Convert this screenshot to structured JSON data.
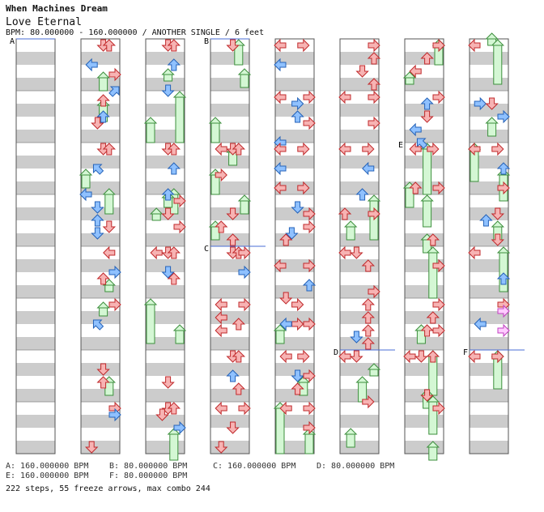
{
  "song": {
    "title": "When Machines Dream",
    "subtitle": "Love Eternal",
    "bpm_line": "BPM: 80.000000 - 160.000000 / ANOTHER SINGLE / 6 feet"
  },
  "section_markers": [
    "A",
    "B",
    "C",
    "D",
    "E",
    "F"
  ],
  "bpm_legend": [
    "A: 160.000000 BPM",
    "B: 80.000000 BPM",
    "C: 160.000000 BPM",
    "D: 80.000000 BPM",
    "E: 160.000000 BPM",
    "F: 80.000000 BPM"
  ],
  "footer": "222 steps, 55 freeze arrows, max combo 244",
  "colors": {
    "stripe": "#cccccc",
    "border": "#555555",
    "red_arrow": "#f7b3b3",
    "red_outline": "#c0292b",
    "blue_arrow": "#8fc1ff",
    "blue_outline": "#2462b8",
    "green_freeze": "#d4f7d4",
    "green_outline": "#3d8f3d",
    "pink_arrow": "#ffccff",
    "pink_outline": "#c040c0",
    "marker_line": "#4a6cd4"
  }
}
